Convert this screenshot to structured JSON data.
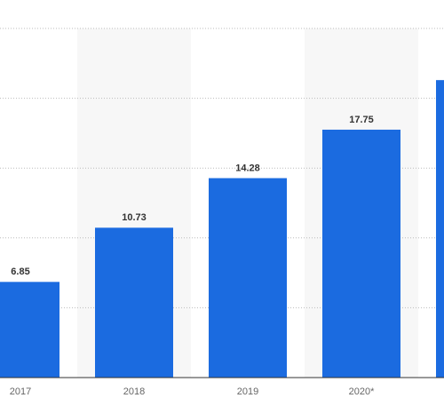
{
  "chart_data": {
    "type": "bar",
    "categories": [
      "2017",
      "2018",
      "2019",
      "2020*",
      null
    ],
    "values": [
      6.85,
      10.73,
      14.28,
      17.75,
      21.3
    ],
    "value_labels": [
      "6.85",
      "10.73",
      "14.28",
      "17.75",
      null
    ],
    "color": "#1b6be0",
    "ylim": [
      0,
      25
    ],
    "yticks": [
      0,
      5,
      10,
      15,
      20,
      25
    ],
    "grid": true
  }
}
